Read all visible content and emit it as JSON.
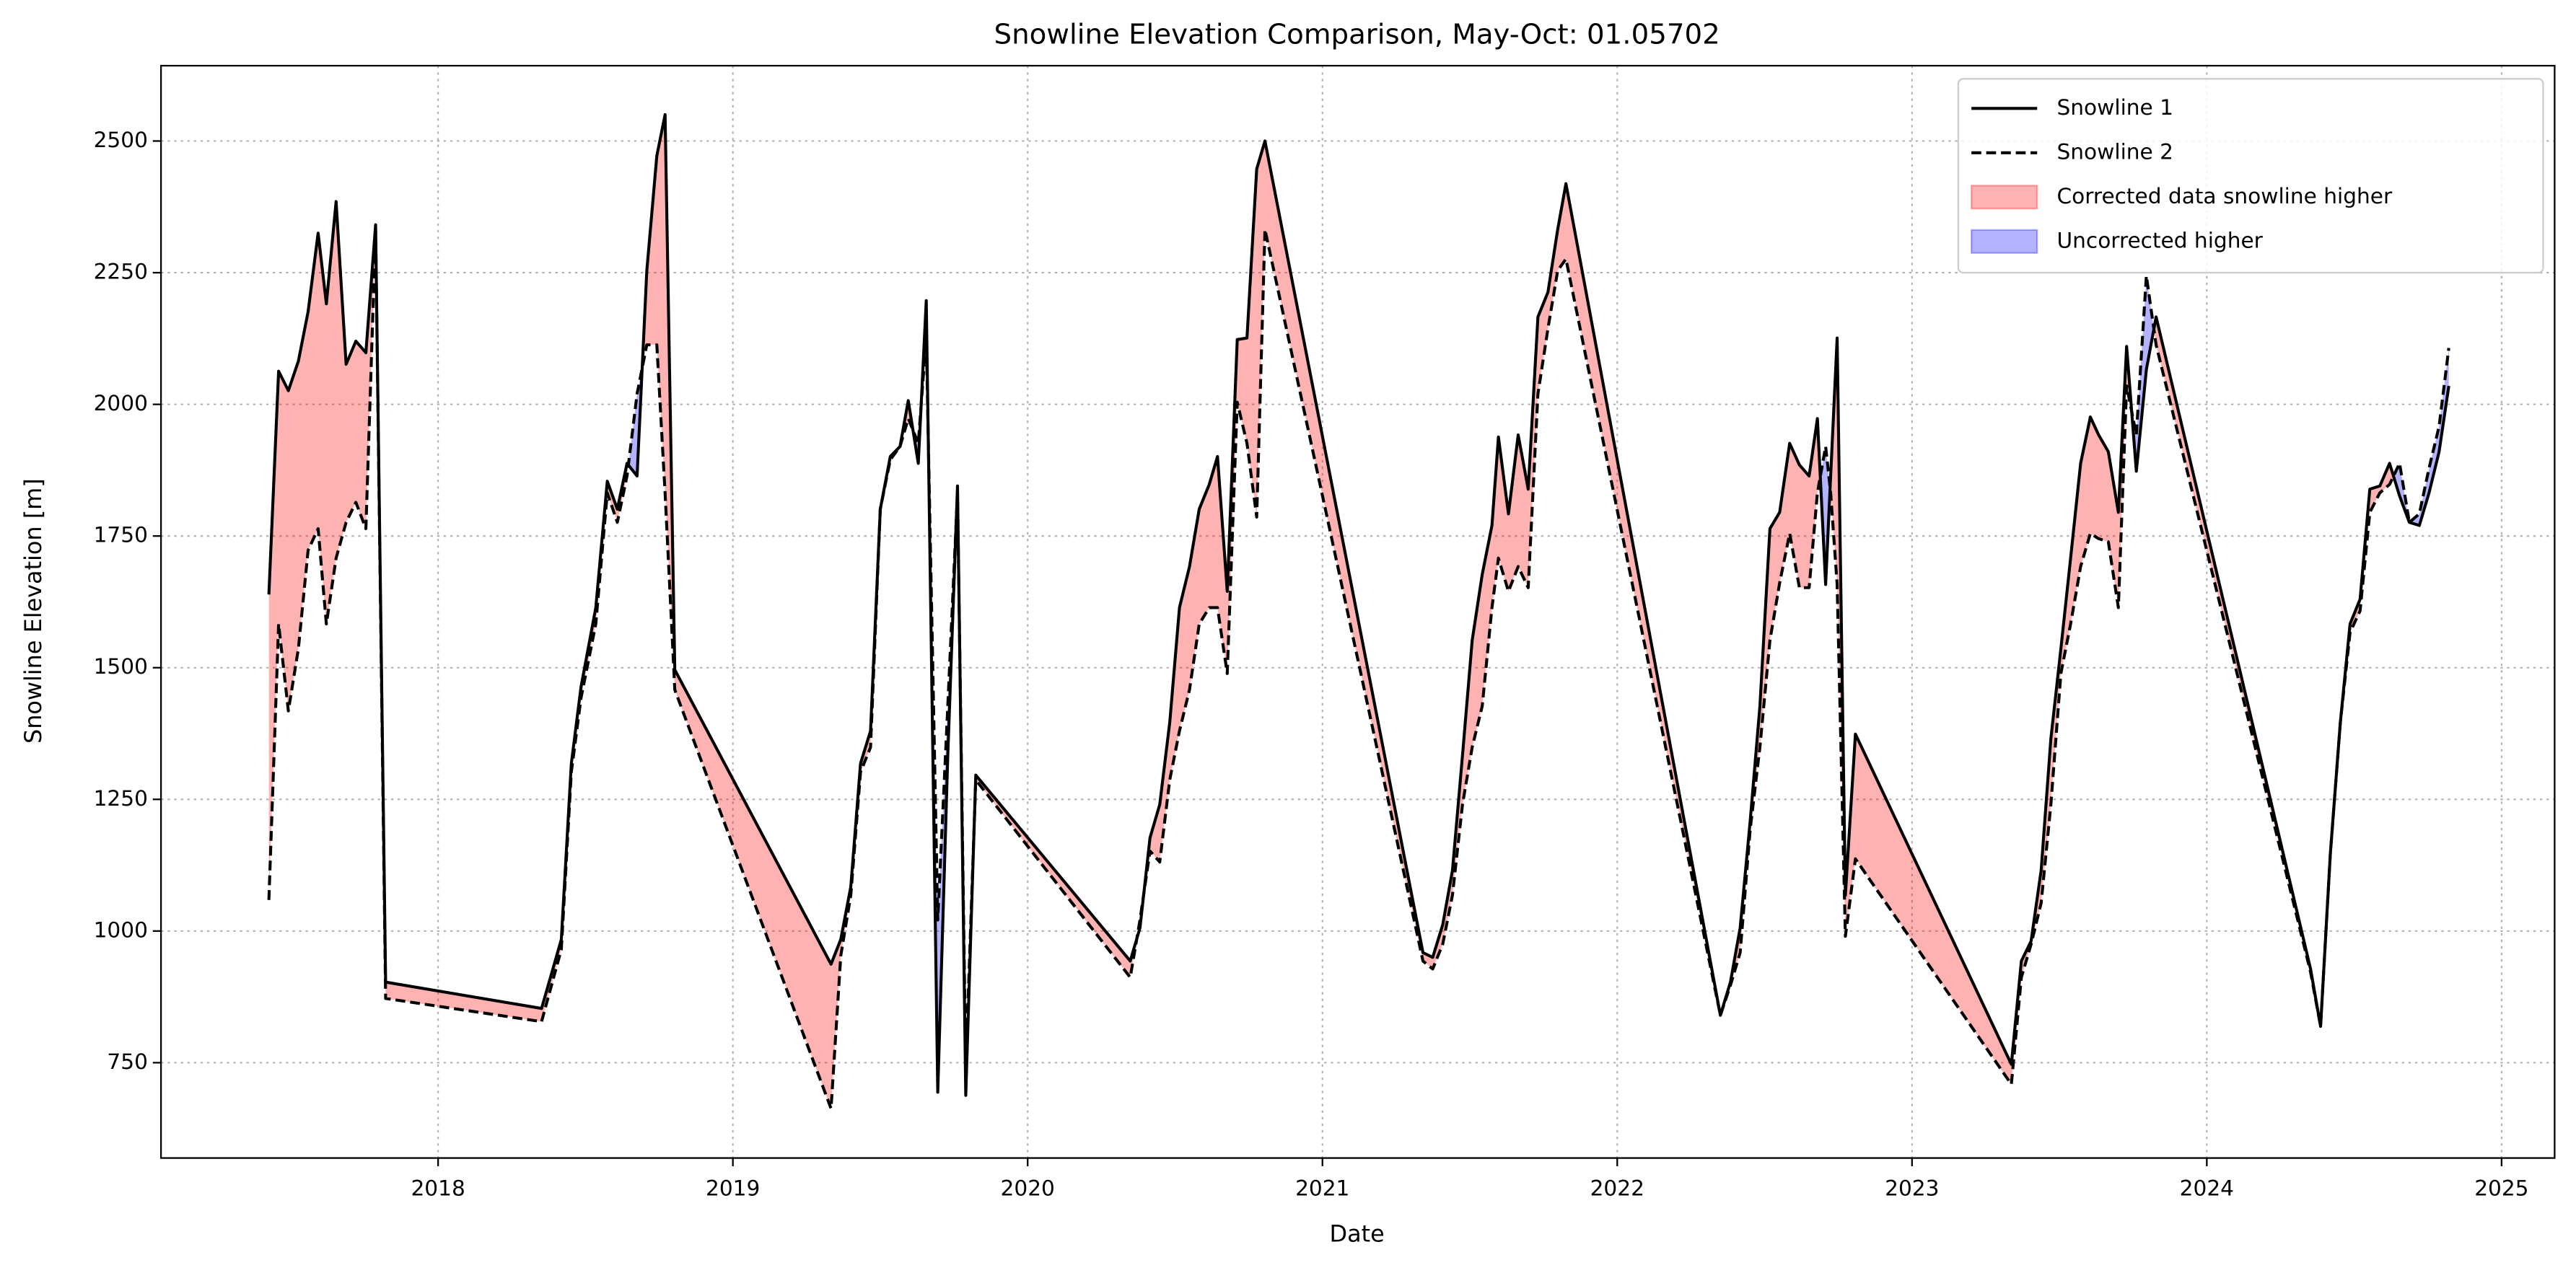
{
  "chart_data": {
    "type": "line",
    "title": "Snowline Elevation Comparison, May-Oct: 01.05702",
    "xlabel": "Date",
    "ylabel": "Snowline Elevation [m]",
    "xlim": [
      2017.06,
      2025.18
    ],
    "ylim": [
      569,
      2643
    ],
    "xticks": [
      2018,
      2019,
      2020,
      2021,
      2022,
      2023,
      2024,
      2025
    ],
    "yticks": [
      750,
      1000,
      1250,
      1500,
      1750,
      2000,
      2250,
      2500
    ],
    "grid": true,
    "legend": "upper right",
    "x": [
      2017.426,
      2017.459,
      2017.492,
      2017.526,
      2017.559,
      2017.593,
      2017.621,
      2017.654,
      2017.688,
      2017.721,
      2017.755,
      2017.788,
      2017.822,
      2018.351,
      2018.418,
      2018.452,
      2018.485,
      2018.535,
      2018.574,
      2018.608,
      2018.641,
      2018.675,
      2018.708,
      2018.742,
      2018.77,
      2018.803,
      2019.333,
      2019.366,
      2019.4,
      2019.433,
      2019.467,
      2019.5,
      2019.534,
      2019.567,
      2019.595,
      2019.629,
      2019.656,
      2019.695,
      2019.729,
      2019.762,
      2019.79,
      2019.824,
      2020.348,
      2020.381,
      2020.415,
      2020.448,
      2020.482,
      2020.515,
      2020.549,
      2020.582,
      2020.616,
      2020.644,
      2020.677,
      2020.711,
      2020.744,
      2020.777,
      2020.805,
      2021.341,
      2021.374,
      2021.408,
      2021.441,
      2021.475,
      2021.508,
      2021.542,
      2021.575,
      2021.597,
      2021.631,
      2021.664,
      2021.698,
      2021.731,
      2021.765,
      2021.798,
      2021.826,
      2022.35,
      2022.384,
      2022.417,
      2022.451,
      2022.484,
      2022.518,
      2022.551,
      2022.585,
      2022.618,
      2022.651,
      2022.679,
      2022.707,
      2022.724,
      2022.746,
      2022.774,
      2022.808,
      2023.337,
      2023.371,
      2023.404,
      2023.438,
      2023.471,
      2023.505,
      2023.538,
      2023.572,
      2023.605,
      2023.633,
      2023.666,
      2023.7,
      2023.728,
      2023.761,
      2023.795,
      2023.828,
      2024.352,
      2024.386,
      2024.419,
      2024.453,
      2024.486,
      2024.52,
      2024.553,
      2024.587,
      2024.62,
      2024.654,
      2024.687,
      2024.721,
      2024.754,
      2024.788,
      2024.821
    ],
    "series": [
      {
        "name": "Snowline 1",
        "color": "#000000",
        "linestyle": "solid",
        "values": [
          1639,
          2063,
          2026,
          2082,
          2176,
          2325,
          2191,
          2385,
          2076,
          2120,
          2098,
          2341,
          903,
          853,
          984,
          1318,
          1464,
          1614,
          1854,
          1801,
          1888,
          1864,
          2254,
          2472,
          2550,
          1496,
          937,
          984,
          1084,
          1318,
          1380,
          1801,
          1901,
          1920,
          2007,
          1888,
          2197,
          694,
          1333,
          1845,
          688,
          1296,
          943,
          1006,
          1177,
          1240,
          1396,
          1614,
          1692,
          1801,
          1848,
          1901,
          1645,
          2123,
          2126,
          2447,
          2500,
          959,
          950,
          1012,
          1115,
          1333,
          1552,
          1677,
          1770,
          1938,
          1792,
          1942,
          1839,
          2166,
          2213,
          2332,
          2419,
          840,
          903,
          1006,
          1209,
          1427,
          1764,
          1795,
          1926,
          1885,
          1864,
          1973,
          1658,
          1864,
          2126,
          1068,
          1374,
          747,
          943,
          981,
          1115,
          1365,
          1536,
          1708,
          1888,
          1976,
          1942,
          1910,
          1795,
          2110,
          1873,
          2066,
          2166,
          928,
          819,
          1146,
          1396,
          1583,
          1630,
          1839,
          1845,
          1888,
          1826,
          1776,
          1770,
          1832,
          1910,
          2035
        ]
      },
      {
        "name": "Snowline 2",
        "color": "#000000",
        "linestyle": "dashed",
        "values": [
          1059,
          1583,
          1418,
          1536,
          1723,
          1764,
          1583,
          1708,
          1776,
          1814,
          1764,
          2332,
          872,
          828,
          965,
          1302,
          1443,
          1583,
          1832,
          1776,
          1864,
          2020,
          2113,
          2113,
          1832,
          1458,
          663,
          953,
          1068,
          1302,
          1349,
          1801,
          1895,
          1920,
          1973,
          1926,
          2129,
          1021,
          1427,
          1832,
          741,
          1287,
          912,
          1021,
          1152,
          1131,
          1287,
          1380,
          1458,
          1583,
          1614,
          1614,
          1489,
          2004,
          1926,
          1786,
          2332,
          943,
          928,
          975,
          1068,
          1240,
          1349,
          1427,
          1614,
          1708,
          1645,
          1692,
          1652,
          2020,
          2144,
          2254,
          2276,
          840,
          897,
          959,
          1193,
          1349,
          1552,
          1661,
          1755,
          1652,
          1652,
          1832,
          1920,
          1832,
          1658,
          990,
          1137,
          709,
          912,
          975,
          1053,
          1240,
          1489,
          1583,
          1692,
          1755,
          1745,
          1739,
          1614,
          2035,
          1942,
          2244,
          2113,
          922,
          819,
          1146,
          1396,
          1567,
          1608,
          1795,
          1832,
          1848,
          1888,
          1776,
          1792,
          1879,
          1958,
          2107
        ]
      }
    ],
    "fill_between": [
      {
        "name": "Corrected data snowline higher",
        "color": "#ff0000",
        "alpha": 0.3
      },
      {
        "name": "Uncorrected higher",
        "color": "#0000ff",
        "alpha": 0.3
      }
    ]
  }
}
